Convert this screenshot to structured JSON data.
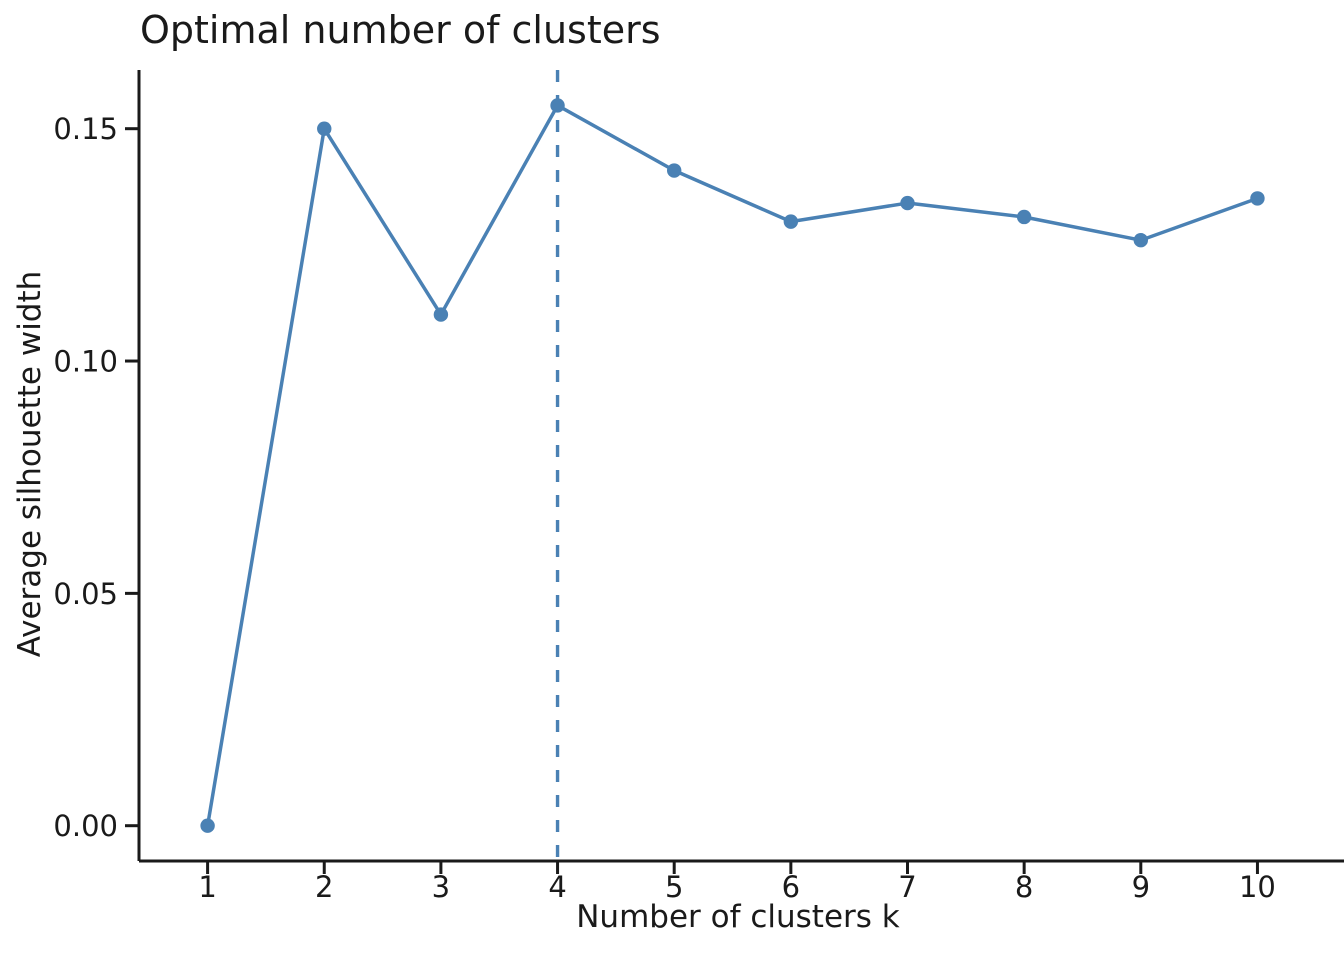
{
  "chart_data": {
    "type": "line",
    "title": "Optimal number of clusters",
    "xlabel": "Number of clusters k",
    "ylabel": "Average silhouette width",
    "x": [
      1,
      2,
      3,
      4,
      5,
      6,
      7,
      8,
      9,
      10
    ],
    "values": [
      0.0,
      0.15,
      0.11,
      0.155,
      0.141,
      0.13,
      0.134,
      0.131,
      0.126,
      0.135
    ],
    "series": [
      {
        "name": "Average silhouette width",
        "values": [
          0.0,
          0.15,
          0.11,
          0.155,
          0.141,
          0.13,
          0.134,
          0.131,
          0.126,
          0.135
        ]
      }
    ],
    "xtick_labels": [
      "1",
      "2",
      "3",
      "4",
      "5",
      "6",
      "7",
      "8",
      "9",
      "10"
    ],
    "ytick_labels": [
      "0.00",
      "0.05",
      "0.10",
      "0.15"
    ],
    "ytick_values": [
      0.0,
      0.05,
      0.1,
      0.15
    ],
    "xlim": [
      0.41,
      10.75
    ],
    "ylim": [
      -0.008,
      0.162
    ],
    "grid": false,
    "legend": null,
    "marker": "circle",
    "vline": {
      "x": 4,
      "style": "dashed",
      "note": "vertical dashed reference line at optimal k"
    },
    "colors": {
      "series": "#4a81b4",
      "axis": "#1a1a1a",
      "text": "#1a1a1a",
      "background": "#ffffff"
    }
  }
}
